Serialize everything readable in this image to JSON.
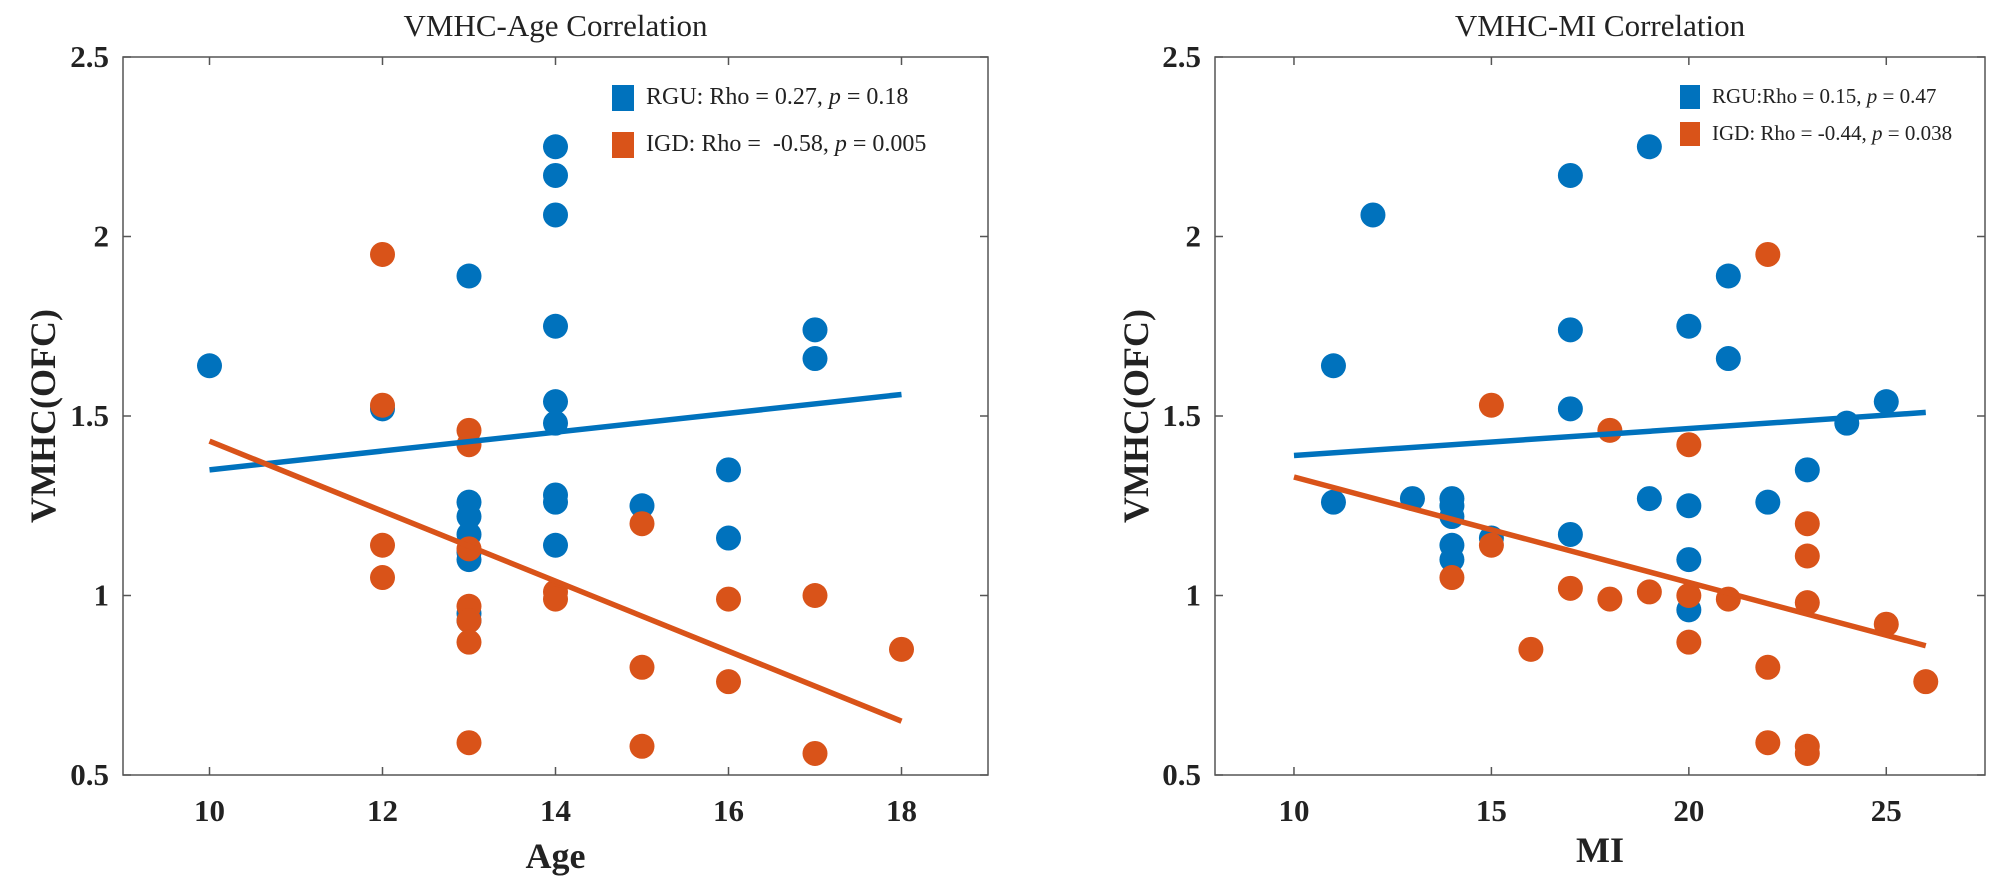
{
  "chart_data": [
    {
      "type": "scatter",
      "title": "VMHC-Age Correlation",
      "xlabel": "Age",
      "ylabel": "VMHC(OFC)",
      "xlim": [
        9,
        19
      ],
      "ylim": [
        0.5,
        2.5
      ],
      "xticks": [
        10,
        12,
        14,
        16,
        18
      ],
      "yticks": [
        0.5,
        1,
        1.5,
        2,
        2.5
      ],
      "ytick_labels": [
        "0.5",
        "1",
        "1.5",
        "2",
        "2.5"
      ],
      "grid": false,
      "legend_position": "top-right",
      "series": [
        {
          "name": "RGU",
          "color": "#0072BD",
          "legend": {
            "prefix": "RGU: Rho = 0.27, ",
            "p": "p",
            "suffix": " = 0.18"
          },
          "points": [
            [
              10,
              1.64
            ],
            [
              12,
              1.52
            ],
            [
              13,
              1.89
            ],
            [
              13,
              1.26
            ],
            [
              13,
              1.22
            ],
            [
              13,
              1.17
            ],
            [
              13,
              1.12
            ],
            [
              13,
              1.1
            ],
            [
              13,
              0.95
            ],
            [
              13,
              0.93
            ],
            [
              14,
              2.25
            ],
            [
              14,
              2.17
            ],
            [
              14,
              2.06
            ],
            [
              14,
              1.75
            ],
            [
              14,
              1.54
            ],
            [
              14,
              1.48
            ],
            [
              14,
              1.28
            ],
            [
              14,
              1.26
            ],
            [
              14,
              1.14
            ],
            [
              15,
              1.25
            ],
            [
              16,
              1.35
            ],
            [
              16,
              1.16
            ],
            [
              17,
              1.74
            ],
            [
              17,
              1.66
            ]
          ],
          "fit": [
            [
              10,
              1.35
            ],
            [
              18,
              1.56
            ]
          ]
        },
        {
          "name": "IGD",
          "color": "#D95319",
          "legend": {
            "prefix": "IGD: Rho =  -0.58, ",
            "p": "p",
            "suffix": " = 0.005"
          },
          "points": [
            [
              12,
              1.95
            ],
            [
              12,
              1.53
            ],
            [
              12,
              1.14
            ],
            [
              12,
              1.05
            ],
            [
              13,
              1.46
            ],
            [
              13,
              1.42
            ],
            [
              13,
              1.13
            ],
            [
              13,
              0.97
            ],
            [
              13,
              0.93
            ],
            [
              13,
              0.87
            ],
            [
              13,
              0.59
            ],
            [
              14,
              1.01
            ],
            [
              14,
              0.99
            ],
            [
              15,
              1.2
            ],
            [
              15,
              0.8
            ],
            [
              15,
              0.58
            ],
            [
              16,
              0.99
            ],
            [
              16,
              0.76
            ],
            [
              17,
              1.0
            ],
            [
              17,
              0.56
            ],
            [
              18,
              0.85
            ]
          ],
          "fit": [
            [
              10,
              1.43
            ],
            [
              18,
              0.65
            ]
          ]
        }
      ]
    },
    {
      "type": "scatter",
      "title": "VMHC-MI Correlation",
      "xlabel": "MI",
      "ylabel": "VMHC(OFC)",
      "xlim": [
        8,
        27.5
      ],
      "ylim": [
        0.5,
        2.5
      ],
      "xticks": [
        10,
        15,
        20,
        25
      ],
      "yticks": [
        0.5,
        1,
        1.5,
        2,
        2.5
      ],
      "ytick_labels": [
        "0.5",
        "1",
        "1.5",
        "2",
        "2.5"
      ],
      "grid": false,
      "legend_position": "top-right",
      "series": [
        {
          "name": "RGU",
          "color": "#0072BD",
          "legend": {
            "prefix": "RGU:Rho = 0.15, ",
            "p": "p",
            "suffix": " = 0.47"
          },
          "points": [
            [
              11,
              1.64
            ],
            [
              11,
              1.26
            ],
            [
              12,
              2.06
            ],
            [
              13,
              1.27
            ],
            [
              14,
              1.27
            ],
            [
              14,
              1.25
            ],
            [
              14,
              1.22
            ],
            [
              14,
              1.14
            ],
            [
              14,
              1.1
            ],
            [
              15,
              1.16
            ],
            [
              17,
              2.17
            ],
            [
              17,
              1.74
            ],
            [
              17,
              1.52
            ],
            [
              17,
              1.17
            ],
            [
              19,
              2.25
            ],
            [
              19,
              1.27
            ],
            [
              20,
              1.75
            ],
            [
              20,
              1.25
            ],
            [
              20,
              1.1
            ],
            [
              20,
              0.96
            ],
            [
              21,
              1.89
            ],
            [
              21,
              1.66
            ],
            [
              22,
              1.26
            ],
            [
              23,
              1.35
            ],
            [
              24,
              1.48
            ],
            [
              25,
              1.54
            ]
          ],
          "fit": [
            [
              10,
              1.39
            ],
            [
              26,
              1.51
            ]
          ]
        },
        {
          "name": "IGD",
          "color": "#D95319",
          "legend": {
            "prefix": "IGD: Rho = -0.44, ",
            "p": "p",
            "suffix": " = 0.038"
          },
          "points": [
            [
              14,
              1.05
            ],
            [
              15,
              1.53
            ],
            [
              15,
              1.14
            ],
            [
              16,
              0.85
            ],
            [
              17,
              1.02
            ],
            [
              18,
              1.46
            ],
            [
              18,
              0.99
            ],
            [
              19,
              1.01
            ],
            [
              20,
              1.42
            ],
            [
              20,
              1.0
            ],
            [
              20,
              0.87
            ],
            [
              21,
              0.99
            ],
            [
              22,
              1.95
            ],
            [
              22,
              0.8
            ],
            [
              22,
              0.59
            ],
            [
              23,
              1.2
            ],
            [
              23,
              1.11
            ],
            [
              23,
              0.98
            ],
            [
              23,
              0.58
            ],
            [
              23,
              0.56
            ],
            [
              25,
              0.92
            ],
            [
              26,
              0.76
            ]
          ],
          "fit": [
            [
              10,
              1.33
            ],
            [
              26,
              0.86
            ]
          ]
        }
      ]
    }
  ]
}
